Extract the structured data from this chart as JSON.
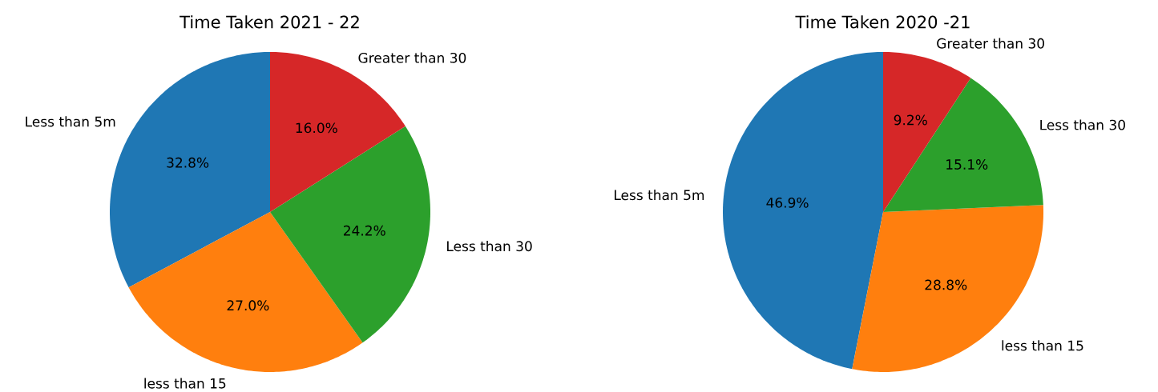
{
  "chart_data": [
    {
      "type": "pie",
      "title": "Time Taken 2021 - 22",
      "categories": [
        "Less than 5m",
        "less than 15",
        "Less than 30",
        "Greater than 30"
      ],
      "values": [
        32.8,
        27.0,
        24.2,
        16.0
      ],
      "colors": [
        "#1f77b4",
        "#ff7f0e",
        "#2ca02c",
        "#d62728"
      ],
      "value_labels": [
        "32.8%",
        "27.0%",
        "24.2%",
        "16.0%"
      ]
    },
    {
      "type": "pie",
      "title": "Time Taken 2020 -21",
      "categories": [
        "Less than 5m",
        "less than 15",
        "Less than 30",
        "Greater than 30"
      ],
      "values": [
        46.9,
        28.8,
        15.1,
        9.2
      ],
      "colors": [
        "#1f77b4",
        "#ff7f0e",
        "#2ca02c",
        "#d62728"
      ],
      "value_labels": [
        "46.9%",
        "28.8%",
        "15.1%",
        "9.2%"
      ]
    }
  ]
}
